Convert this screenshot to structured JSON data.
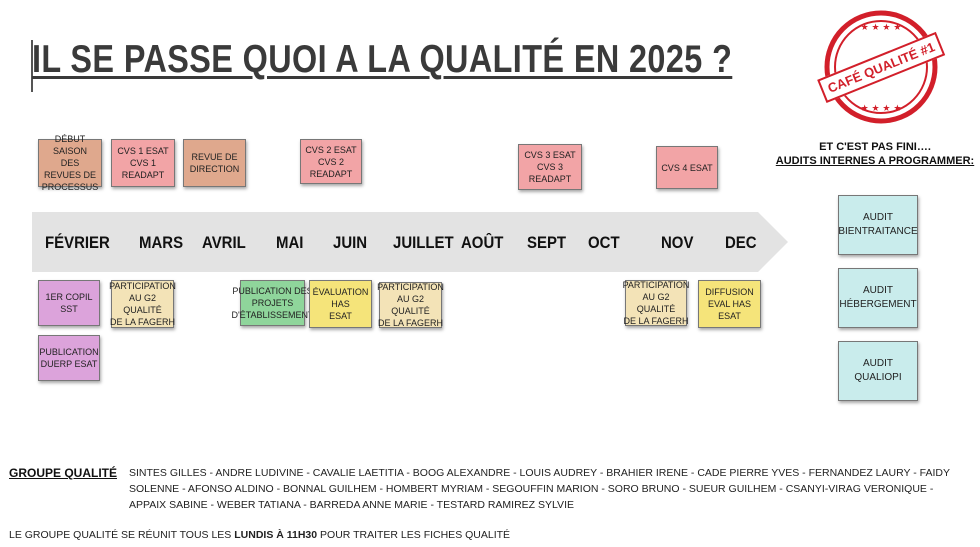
{
  "title": "IL SE PASSE QUOI A LA QUALITÉ EN 2025 ?",
  "stamp": {
    "text": "CAFÉ QUALITÉ #1",
    "color": "#d21f2a"
  },
  "colors": {
    "arrow": "#e3e3e3",
    "salmon": "#dfa88d",
    "pink": "#f2a4a6",
    "purple": "#dca3db",
    "beige": "#f3e3b7",
    "green": "#8fd59b",
    "yellow": "#f5e47a",
    "teal": "#c9ecec"
  },
  "months": [
    "FÉVRIER",
    "MARS",
    "AVRIL",
    "MAI",
    "JUIN",
    "JUILLET",
    "AOÛT",
    "SEPT",
    "OCT",
    "NOV",
    "DEC"
  ],
  "top_events": [
    {
      "text": "DÉBUT SAISON\nDES REVUES DE\nPROCESSUS",
      "color": "salmon"
    },
    {
      "text": "CVS 1 ESAT\nCVS 1 READAPT",
      "color": "pink"
    },
    {
      "text": "REVUE DE\nDIRECTION",
      "color": "salmon"
    },
    {
      "text": "CVS 2 ESAT\nCVS 2 READAPT",
      "color": "pink"
    },
    {
      "text": "CVS 3  ESAT\nCVS 3  READAPT",
      "color": "pink"
    },
    {
      "text": "CVS 4  ESAT",
      "color": "pink"
    }
  ],
  "bottom_events": [
    {
      "text": "1ER COPIL\nSST",
      "color": "purple"
    },
    {
      "text": "PUBLICATION\nDUERP ESAT",
      "color": "purple"
    },
    {
      "text": "PARTICIPATION\nAU G2 QUALITÉ\nDE LA FAGERH",
      "color": "beige"
    },
    {
      "text": "PUBLICATION DES\nPROJETS\nD'ÉTABLISSEMENT",
      "color": "green"
    },
    {
      "text": "ÉVALUATION HAS\nESAT",
      "color": "yellow"
    },
    {
      "text": "PARTICIPATION\nAU G2 QUALITÉ\nDE LA FAGERH",
      "color": "beige"
    },
    {
      "text": "PARTICIPATION\nAU G2 QUALITÉ\nDE LA FAGERH",
      "color": "beige"
    },
    {
      "text": "DIFFUSION\nEVAL HAS ESAT",
      "color": "yellow"
    }
  ],
  "side": {
    "title_line1": "ET C'EST PAS FINI….",
    "title_line2": "AUDITS INTERNES A PROGRAMMER:",
    "audits": [
      "AUDIT\nBIENTRAITANCE",
      "AUDIT\nHÉBERGEMENT",
      "AUDIT\nQUALIOPI"
    ]
  },
  "group": {
    "heading": "GROUPE QUALITÉ",
    "members": "SINTES GILLES - ANDRE LUDIVINE - CAVALIE LAETITIA - BOOG ALEXANDRE - LOUIS AUDREY - BRAHIER IRENE - CADE PIERRE YVES - FERNANDEZ LAURY - FAIDY SOLENNE - AFONSO ALDINO - BONNAL GUILHEM - HOMBERT MYRIAM - SEGOUFFIN MARION - SORO BRUNO - SUEUR GUILHEM - CSANYI-VIRAG VERONIQUE - APPAIX SABINE - WEBER TATIANA - BARREDA ANNE MARIE - TESTARD RAMIREZ SYLVIE"
  },
  "footer": {
    "before": "LE GROUPE QUALITÉ SE RÉUNIT TOUS LES ",
    "bold": "LUNDIS À 11H30",
    "after": " POUR TRAITER LES FICHES QUALITÉ"
  }
}
